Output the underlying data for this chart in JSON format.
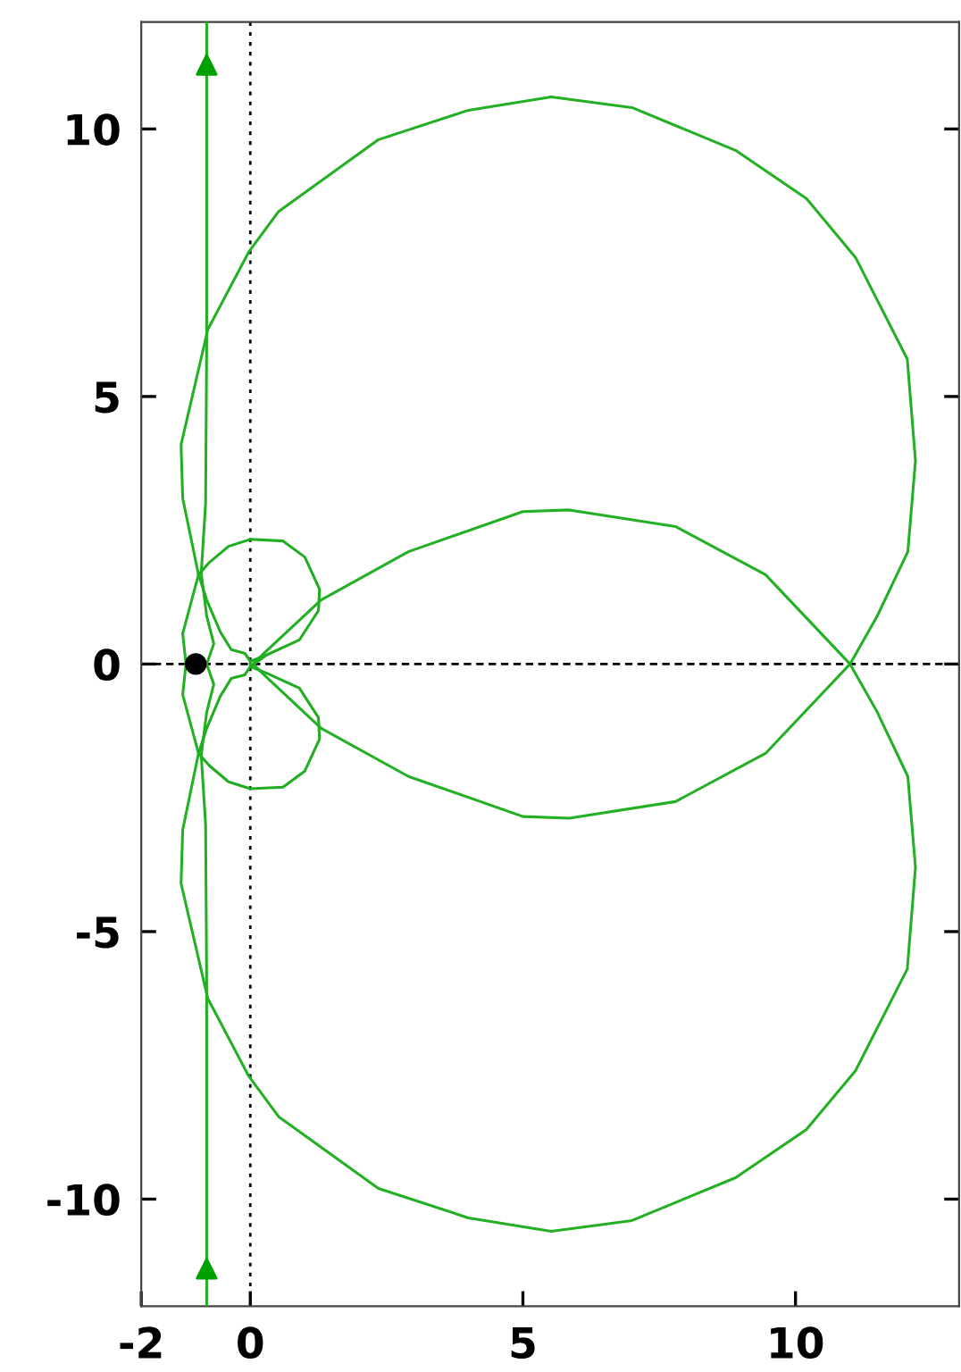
{
  "chart_data": {
    "type": "line",
    "xlim": [
      -2,
      13
    ],
    "ylim": [
      -12,
      12
    ],
    "xticks": [
      -2,
      0,
      5,
      10
    ],
    "yticks": [
      -10,
      -5,
      0,
      5,
      10
    ],
    "ref_lines": [
      {
        "axis": "x",
        "value": 0,
        "color": "#000000",
        "line_style": "dotted"
      },
      {
        "axis": "y",
        "value": 0,
        "color": "#000000",
        "line_style": "dashed"
      }
    ],
    "series": [
      {
        "type": "line",
        "color": "#22b022",
        "x": [
          -0.8,
          -0.8,
          -0.82,
          -0.9,
          -0.8,
          -0.67,
          -0.8,
          -0.67,
          -0.8,
          -0.9,
          -0.82,
          -0.8,
          -0.8
        ],
        "values": [
          12,
          6,
          3,
          1.7,
          0.9,
          0.38,
          0,
          -0.38,
          -0.9,
          -1.7,
          -3,
          -6,
          -12
        ]
      },
      {
        "type": "line",
        "color": "#24b024",
        "x": [
          -1.18,
          -1.24,
          -0.95,
          -1.24,
          -1.27,
          -0.78,
          -0.03,
          0.52,
          2.35,
          4,
          5.52,
          7,
          8.9,
          10.2,
          11.1,
          12.05,
          12.2,
          12.06,
          11.5,
          11.0,
          9.45,
          7.8,
          5.85,
          5,
          2.9,
          1.3,
          0.25,
          0.05,
          0.25,
          1.3,
          2.9,
          5,
          5.85,
          7.8,
          9.45,
          11.0,
          11.5,
          12.06,
          12.2,
          12.05,
          11.1,
          10.2,
          8.9,
          7,
          5.52,
          4,
          2.35,
          0.52,
          -0.03,
          -0.78,
          -1.27,
          -1.24,
          -0.95,
          -1.24,
          -1.18,
          -1.24
        ],
        "values": [
          0,
          0.57,
          1.67,
          3.1,
          4.1,
          6.25,
          7.7,
          8.46,
          9.8,
          10.35,
          10.6,
          10.4,
          9.6,
          8.7,
          7.6,
          5.7,
          3.8,
          2.1,
          0.9,
          0,
          -1.67,
          -2.57,
          -2.88,
          -2.85,
          -2.1,
          -1.2,
          -0.2,
          0,
          0.2,
          1.2,
          2.1,
          2.85,
          2.88,
          2.57,
          1.67,
          0,
          -0.9,
          -2.1,
          -3.8,
          -5.7,
          -7.6,
          -8.7,
          -9.6,
          -10.4,
          -10.6,
          -10.35,
          -9.8,
          -8.46,
          -7.7,
          -6.25,
          -4.1,
          -3.1,
          -1.67,
          -0.57,
          0,
          0.57
        ]
      },
      {
        "type": "line",
        "color": "#20ae20",
        "x": [
          0,
          0.3,
          0.9,
          1.25,
          1.27,
          1.0,
          0.6,
          0,
          -0.4,
          -0.75,
          -0.95,
          -0.8,
          -0.55,
          -0.35,
          -0.1,
          0,
          0,
          -0.1,
          -0.35,
          -0.55,
          -0.8,
          -0.95,
          -0.75,
          -0.4,
          0,
          0.6,
          1.0,
          1.27,
          1.25,
          0.9,
          0.3,
          0,
          0.3
        ],
        "values": [
          0.05,
          0.17,
          0.45,
          1.0,
          1.4,
          2.0,
          2.3,
          2.33,
          2.2,
          1.9,
          1.67,
          1.2,
          0.6,
          0.27,
          0.2,
          0.05,
          -0.05,
          -0.2,
          -0.27,
          -0.6,
          -1.2,
          -1.67,
          -1.9,
          -2.2,
          -2.33,
          -2.3,
          -2.0,
          -1.4,
          -1.0,
          -0.45,
          -0.17,
          -0.05,
          0.17
        ]
      },
      {
        "type": "scatter",
        "marker": "triangle",
        "color": "#00a000",
        "x": [
          -0.8,
          -0.8
        ],
        "values": [
          11.2,
          -11.3
        ]
      },
      {
        "type": "scatter",
        "marker": "circle",
        "color": "#000000",
        "x": [
          -1
        ],
        "values": [
          0
        ]
      }
    ]
  }
}
